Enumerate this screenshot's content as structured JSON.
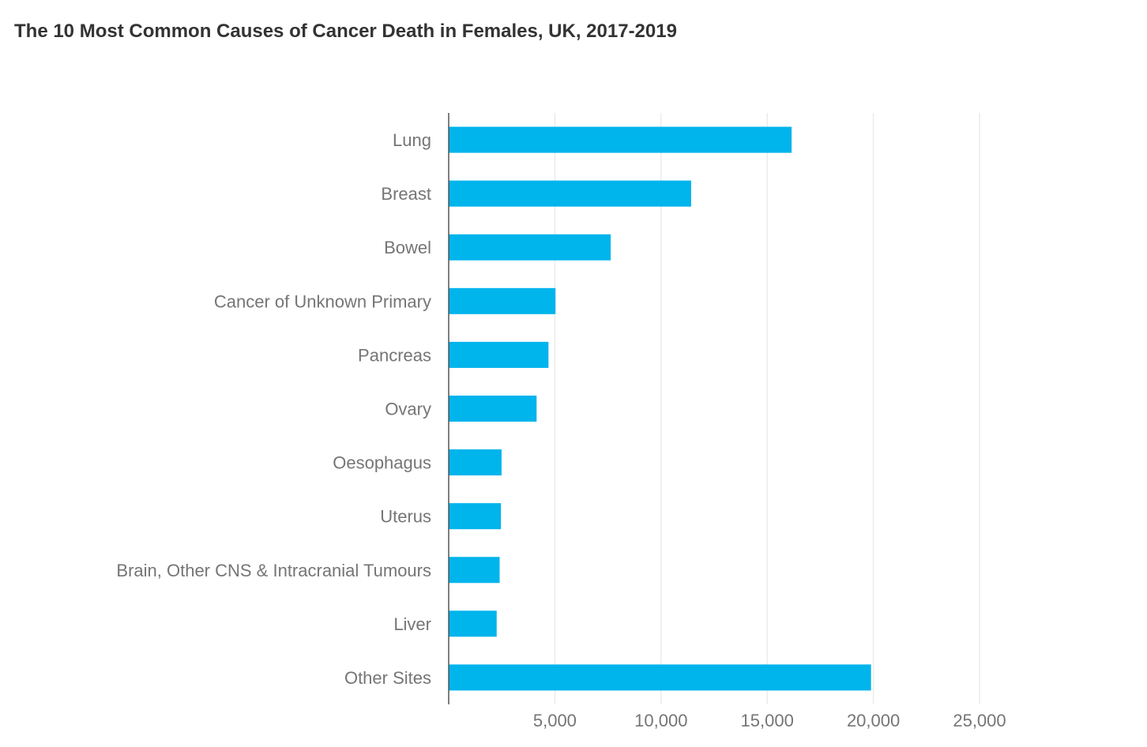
{
  "chart_data": {
    "type": "bar",
    "orientation": "horizontal",
    "title": "The 10 Most Common Causes of Cancer Death in Females, UK, 2017-2019",
    "xlabel": "",
    "ylabel": "",
    "categories": [
      "Lung",
      "Breast",
      "Bowel",
      "Cancer of Unknown Primary",
      "Pancreas",
      "Ovary",
      "Oesophagus",
      "Uterus",
      "Brain, Other CNS & Intracranial Tumours",
      "Liver",
      "Other Sites"
    ],
    "values": [
      16150,
      11420,
      7630,
      5030,
      4700,
      4140,
      2490,
      2460,
      2400,
      2260,
      19890
    ],
    "xlim": [
      0,
      28000
    ],
    "ticks": [
      5000,
      10000,
      15000,
      20000,
      25000
    ],
    "tick_labels": [
      "5,000",
      "10,000",
      "15,000",
      "20,000",
      "25,000"
    ],
    "grid": true,
    "bar_color": "#00b4ec",
    "grid_color": "#ebebeb",
    "axis_color": "#555555"
  }
}
